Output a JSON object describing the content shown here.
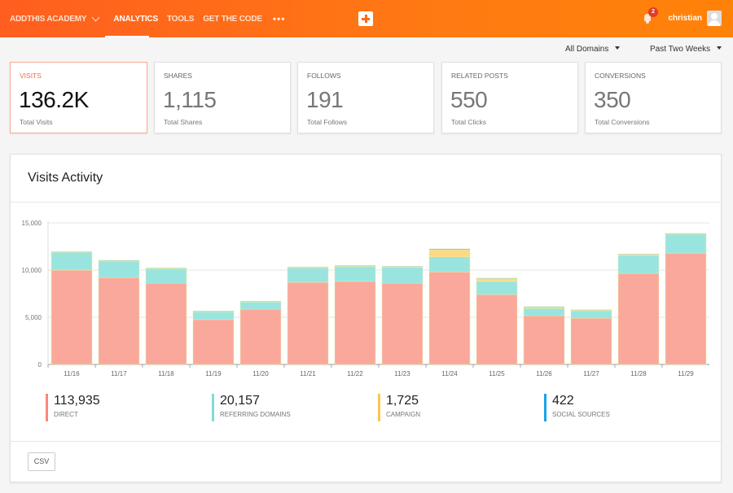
{
  "header": {
    "brand": "ADDTHIS ACADEMY",
    "nav": [
      "ANALYTICS",
      "TOOLS",
      "GET THE CODE"
    ],
    "more": "•••",
    "notifications": "2",
    "user": "christian"
  },
  "filters": {
    "domain": "All Domains",
    "period": "Past Two Weeks"
  },
  "cards": [
    {
      "label": "VISITS",
      "value": "136.2K",
      "sub": "Total Visits"
    },
    {
      "label": "SHARES",
      "value": "1,115",
      "sub": "Total Shares"
    },
    {
      "label": "FOLLOWS",
      "value": "191",
      "sub": "Total Follows"
    },
    {
      "label": "RELATED POSTS",
      "value": "550",
      "sub": "Total Clicks"
    },
    {
      "label": "CONVERSIONS",
      "value": "350",
      "sub": "Total Conversions"
    }
  ],
  "panel": {
    "title": "Visits Activity",
    "csv": "CSV"
  },
  "legend": [
    {
      "value": "113,935",
      "label": "DIRECT",
      "color": "#f88a78"
    },
    {
      "value": "20,157",
      "label": "REFERRING DOMAINS",
      "color": "#7fdcd6"
    },
    {
      "value": "1,725",
      "label": "CAMPAIGN",
      "color": "#fcc54a"
    },
    {
      "value": "422",
      "label": "SOCIAL SOURCES",
      "color": "#1aa3e8"
    }
  ],
  "chart_data": {
    "type": "bar",
    "stacked": true,
    "ylim": [
      0,
      15000
    ],
    "yticks": [
      "0",
      "5,000",
      "10,000",
      "15,000"
    ],
    "ytick_values": [
      0,
      5000,
      10000,
      15000
    ],
    "grid": true,
    "categories": [
      "11/16",
      "11/17",
      "11/18",
      "11/19",
      "11/20",
      "11/21",
      "11/22",
      "11/23",
      "11/24",
      "11/25",
      "11/26",
      "11/27",
      "11/28",
      "11/29"
    ],
    "series": [
      {
        "name": "DIRECT",
        "color": "#f9a89b",
        "values": [
          10000,
          9200,
          8600,
          4750,
          5850,
          8700,
          8800,
          8600,
          9800,
          7400,
          5150,
          4900,
          9650,
          11800
        ]
      },
      {
        "name": "REFERRING DOMAINS",
        "color": "#9ae4df",
        "values": [
          1900,
          1750,
          1550,
          850,
          800,
          1550,
          1600,
          1700,
          1600,
          1400,
          800,
          800,
          1900,
          2000
        ]
      },
      {
        "name": "CAMPAIGN",
        "color": "#fdd985",
        "values": [
          50,
          80,
          50,
          50,
          40,
          60,
          60,
          50,
          750,
          300,
          100,
          60,
          100,
          70
        ]
      },
      {
        "name": "SOCIAL SOURCES",
        "color": "#6ab4e8",
        "values": [
          20,
          20,
          20,
          20,
          20,
          30,
          30,
          50,
          100,
          50,
          80,
          50,
          50,
          20
        ]
      }
    ]
  }
}
